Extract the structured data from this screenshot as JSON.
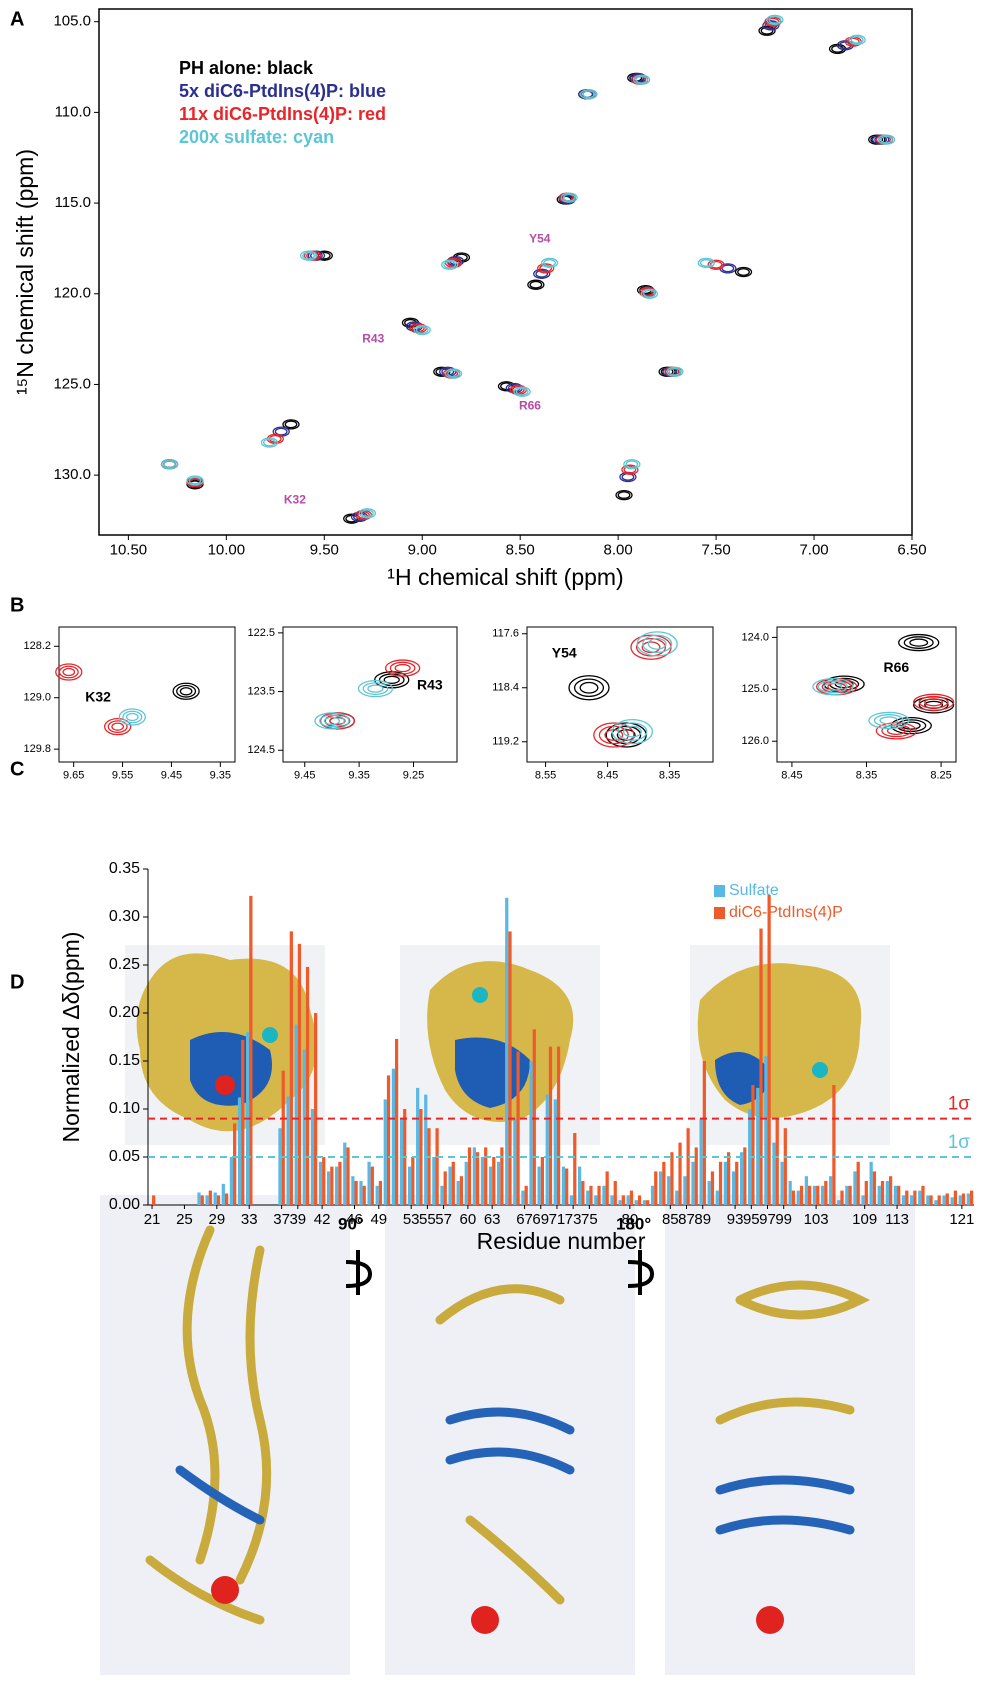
{
  "panel_labels": [
    "A",
    "B",
    "C",
    "D"
  ],
  "chart_data": [
    {
      "type": "scatter",
      "xlabel": "¹H chemical shift (ppm)",
      "ylabel": "¹⁵N chemical shift (ppm)",
      "xlim": [
        10.65,
        6.5
      ],
      "ylim": [
        133.3,
        104.3
      ],
      "xticks": [
        {
          "value": 10.5,
          "label": "10.50"
        },
        {
          "value": 10,
          "label": "10.00"
        },
        {
          "value": 9.5,
          "label": "9.50"
        },
        {
          "value": 9,
          "label": "9.00"
        },
        {
          "value": 8.5,
          "label": "8.50"
        },
        {
          "value": 8,
          "label": "8.00"
        },
        {
          "value": 7.5,
          "label": "7.50"
        },
        {
          "value": 7,
          "label": "7.00"
        },
        {
          "value": 6.5,
          "label": "6.50"
        }
      ],
      "yticks": [
        {
          "value": 105,
          "label": "105.0"
        },
        {
          "value": 110,
          "label": "110.0"
        },
        {
          "value": 115,
          "label": "115.0"
        },
        {
          "value": 120,
          "label": "120.0"
        },
        {
          "value": 125,
          "label": "125.0"
        },
        {
          "value": 130,
          "label": "130.0"
        }
      ],
      "legend": "upper left",
      "annotation_color": "#b84aa8",
      "series": [
        {
          "name": "PH alone: black",
          "color": "#000000",
          "x": [
            7.24,
            6.88,
            7.91,
            8.16,
            6.68,
            8.27,
            8.8,
            9.5,
            7.36,
            8.42,
            7.86,
            9.06,
            8.9,
            7.75,
            8.57,
            9.67,
            10.29,
            7.97,
            9.36,
            10.16
          ],
          "values": [
            105.5,
            106.5,
            108.1,
            109.0,
            111.5,
            114.8,
            118.0,
            117.9,
            118.8,
            119.5,
            119.8,
            121.6,
            124.3,
            124.3,
            125.1,
            127.2,
            129.4,
            131.1,
            132.4,
            130.5
          ]
        },
        {
          "name": "5x diC6-PtdIns(4)P: blue",
          "color": "#2b2f8f",
          "x": [
            7.22,
            6.84,
            7.9,
            8.16,
            6.66,
            8.26,
            8.83,
            9.54,
            7.44,
            8.39,
            7.85,
            9.04,
            8.87,
            7.73,
            8.53,
            9.72,
            10.29,
            7.95,
            9.32,
            10.16
          ],
          "values": [
            105.2,
            106.3,
            108.1,
            109.0,
            111.5,
            114.8,
            118.2,
            117.9,
            118.6,
            118.9,
            119.9,
            121.8,
            124.3,
            124.3,
            125.2,
            127.6,
            129.4,
            130.1,
            132.3,
            130.4
          ]
        },
        {
          "name": "11x diC6-PtdIns(4)P: red",
          "color": "#e8262a",
          "x": [
            7.21,
            6.8,
            7.89,
            8.15,
            6.64,
            8.26,
            8.84,
            9.56,
            7.5,
            8.37,
            7.85,
            9.02,
            8.85,
            7.72,
            8.51,
            9.75,
            10.29,
            7.94,
            9.3,
            10.16
          ],
          "values": [
            105.0,
            106.1,
            108.2,
            109.0,
            111.5,
            114.7,
            118.3,
            117.9,
            118.4,
            118.6,
            119.9,
            121.9,
            124.4,
            124.3,
            125.3,
            128.0,
            129.4,
            129.7,
            132.2,
            130.4
          ]
        },
        {
          "name": "200x sulfate: cyan",
          "color": "#5cc6d6",
          "x": [
            7.2,
            6.78,
            7.88,
            8.15,
            6.63,
            8.25,
            8.86,
            9.58,
            7.55,
            8.35,
            7.84,
            9.0,
            8.84,
            7.71,
            8.49,
            9.78,
            10.29,
            7.93,
            9.28,
            10.16
          ],
          "values": [
            104.9,
            106.0,
            108.2,
            109.0,
            111.5,
            114.7,
            118.4,
            117.9,
            118.3,
            118.3,
            120.0,
            122.0,
            124.4,
            124.3,
            125.4,
            128.2,
            129.4,
            129.4,
            132.1,
            130.3
          ]
        }
      ],
      "annotations": [
        {
          "text": "K32",
          "x": 9.65,
          "y": 131.4
        },
        {
          "text": "R43",
          "x": 9.25,
          "y": 122.5
        },
        {
          "text": "Y54",
          "x": 8.4,
          "y": 117.0
        },
        {
          "text": "R66",
          "x": 8.45,
          "y": 126.2
        }
      ]
    },
    {
      "type": "scatter",
      "xlim": [
        9.68,
        9.32
      ],
      "ylim": [
        130.0,
        127.9
      ],
      "xticks": [
        9.65,
        9.55,
        9.45,
        9.35
      ],
      "yticks": [
        128.2,
        {
          "value": 129,
          "label": "129.0"
        },
        129.8
      ],
      "series": [
        {
          "color": "#000000",
          "x": [
            9.42
          ],
          "values": [
            128.9
          ]
        },
        {
          "color": "#e8262a",
          "x": [
            9.66,
            9.56
          ],
          "values": [
            128.6,
            129.45
          ]
        },
        {
          "color": "#5cc6d6",
          "x": [
            9.53
          ],
          "values": [
            129.3
          ]
        }
      ],
      "annotations": [
        {
          "text": "K32",
          "x": 9.6,
          "y": 129.0
        }
      ]
    },
    {
      "type": "scatter",
      "xlim": [
        9.49,
        9.17
      ],
      "ylim": [
        124.7,
        122.4
      ],
      "xticks": [
        9.45,
        9.35,
        9.25
      ],
      "yticks": [
        122.5,
        123.5,
        124.5
      ],
      "series": [
        {
          "color": "#000000",
          "x": [
            9.29,
            9.39
          ],
          "values": [
            123.3,
            124.0
          ]
        },
        {
          "color": "#e8262a",
          "x": [
            9.27,
            9.39
          ],
          "values": [
            123.1,
            124.0
          ]
        },
        {
          "color": "#5cc6d6",
          "x": [
            9.32,
            9.4
          ],
          "values": [
            123.45,
            124.0
          ]
        }
      ],
      "annotations": [
        {
          "text": "R43",
          "x": 9.22,
          "y": 123.4
        }
      ]
    },
    {
      "type": "scatter",
      "xlim": [
        8.58,
        8.28
      ],
      "ylim": [
        119.5,
        117.5
      ],
      "xticks": [
        8.55,
        8.45,
        8.35
      ],
      "yticks": [
        117.6,
        118.4,
        119.2
      ],
      "series": [
        {
          "color": "#000000",
          "x": [
            8.48,
            8.42
          ],
          "values": [
            118.4,
            119.1
          ]
        },
        {
          "color": "#e8262a",
          "x": [
            8.38,
            8.44
          ],
          "values": [
            117.8,
            119.1
          ]
        },
        {
          "color": "#5cc6d6",
          "x": [
            8.37,
            8.41
          ],
          "values": [
            117.75,
            119.05
          ]
        }
      ],
      "annotations": [
        {
          "text": "Y54",
          "x": 8.52,
          "y": 117.9
        }
      ]
    },
    {
      "type": "scatter",
      "xlim": [
        8.47,
        8.23
      ],
      "ylim": [
        126.4,
        123.8
      ],
      "xticks": [
        8.45,
        8.35,
        8.25
      ],
      "yticks": [
        {
          "value": 124,
          "label": "124.0"
        },
        {
          "value": 125,
          "label": "125.0"
        },
        {
          "value": 126,
          "label": "126.0"
        }
      ],
      "series": [
        {
          "color": "#000000",
          "x": [
            8.28,
            8.38,
            8.29,
            8.26
          ],
          "values": [
            124.1,
            124.9,
            125.7,
            125.3
          ]
        },
        {
          "color": "#e8262a",
          "x": [
            8.39,
            8.31,
            8.26
          ],
          "values": [
            124.95,
            125.8,
            125.25
          ]
        },
        {
          "color": "#5cc6d6",
          "x": [
            8.395,
            8.32
          ],
          "values": [
            124.95,
            125.6
          ]
        }
      ],
      "annotations": [
        {
          "text": "R66",
          "x": 8.31,
          "y": 124.6
        }
      ]
    },
    {
      "type": "bar",
      "xlabel": "Residue number",
      "ylabel": "Normalized Δδ(ppm)",
      "ylim": [
        0,
        0.35
      ],
      "yticks": [
        {
          "value": 0,
          "label": "0.00"
        },
        {
          "value": 0.05,
          "label": "0.05"
        },
        {
          "value": 0.1,
          "label": "0.10"
        },
        {
          "value": 0.15,
          "label": "0.15"
        },
        {
          "value": 0.2,
          "label": "0.20"
        },
        {
          "value": 0.25,
          "label": "0.25"
        },
        {
          "value": 0.3,
          "label": "0.30"
        },
        {
          "value": 0.35,
          "label": "0.35"
        }
      ],
      "legend": "upper right",
      "categories": [
        "21",
        null,
        null,
        null,
        "25",
        null,
        null,
        null,
        "29",
        null,
        null,
        null,
        "33",
        null,
        null,
        null,
        "37",
        null,
        "39",
        null,
        null,
        "42",
        null,
        null,
        null,
        "46",
        null,
        null,
        "49",
        null,
        null,
        null,
        "53",
        null,
        "55",
        null,
        "57",
        null,
        null,
        "60",
        null,
        null,
        "63",
        null,
        null,
        null,
        "67",
        null,
        "69",
        null,
        "71",
        null,
        "73",
        null,
        "75",
        null,
        null,
        null,
        null,
        "80",
        null,
        null,
        null,
        null,
        "85",
        null,
        "87",
        null,
        "89",
        null,
        null,
        null,
        "93",
        null,
        "95",
        null,
        "97",
        null,
        "99",
        null,
        null,
        null,
        "103",
        null,
        null,
        null,
        null,
        null,
        "109",
        null,
        null,
        null,
        "113",
        null,
        null,
        null,
        null,
        null,
        null,
        null,
        "121",
        null
      ],
      "series": [
        {
          "name": "Sulfate",
          "color": "#5ab9e3",
          "values": [
            0,
            0,
            0,
            0,
            0,
            0,
            0.013,
            0.01,
            0.013,
            0.022,
            0.05,
            0.112,
            0.18,
            0,
            0,
            0,
            0.08,
            0.113,
            0.188,
            0.162,
            0.1,
            0.045,
            0.035,
            0.04,
            0.065,
            0.03,
            0.025,
            0.045,
            0.02,
            0.11,
            0.142,
            0.09,
            0.04,
            0.122,
            0.115,
            0.05,
            0.02,
            0.04,
            0.025,
            0.045,
            0.06,
            0.05,
            0.04,
            0.045,
            0.32,
            0.09,
            0.015,
            0.15,
            0.04,
            0.115,
            0.11,
            0.04,
            0.01,
            0.04,
            0.015,
            0.01,
            0.02,
            0.01,
            0.005,
            0.01,
            0.005,
            0.005,
            0.02,
            0.035,
            0.03,
            0.015,
            0.03,
            0.045,
            0.09,
            0.025,
            0.015,
            0.045,
            0.035,
            0.055,
            0.1,
            0.122,
            0.155,
            0.065,
            0.045,
            0.025,
            0.015,
            0.03,
            0.02,
            0.02,
            0.03,
            0.005,
            0.02,
            0.035,
            0.01,
            0.045,
            0.02,
            0.025,
            0.02,
            0.01,
            0.01,
            0.015,
            0.01,
            0.005,
            0.01,
            0.008,
            0.01,
            0.012
          ]
        },
        {
          "name": "diC6-PtdIns(4)P",
          "color": "#ef5a2a",
          "values": [
            0.01,
            0,
            0,
            0,
            0,
            0,
            0.01,
            0.015,
            0.01,
            0.012,
            0.085,
            0.172,
            0.322,
            0,
            0,
            0,
            0.14,
            0.285,
            0.272,
            0.248,
            0.2,
            0.05,
            0.04,
            0.045,
            0.06,
            0.025,
            0.02,
            0.04,
            0.025,
            0.135,
            0.173,
            0.1,
            0.05,
            0.1,
            0.08,
            0.08,
            0.035,
            0.045,
            0.03,
            0.06,
            0.055,
            0.06,
            0.05,
            0.06,
            0.285,
            0.16,
            0.02,
            0.183,
            0.05,
            0.165,
            0.165,
            0.038,
            0.075,
            0.025,
            0.02,
            0.02,
            0.035,
            0.025,
            0.01,
            0.015,
            0.01,
            0.005,
            0.035,
            0.045,
            0.055,
            0.065,
            0.08,
            0.06,
            0.15,
            0.035,
            0.045,
            0.055,
            0.045,
            0.06,
            0.125,
            0.288,
            0.323,
            0.09,
            0.08,
            0.015,
            0.02,
            0.02,
            0.02,
            0.025,
            0.125,
            0.015,
            0.02,
            0.045,
            0.025,
            0.035,
            0.025,
            0.03,
            0.02,
            0.015,
            0.015,
            0.02,
            0.01,
            0.01,
            0.012,
            0.015,
            0.012,
            0.015
          ]
        }
      ],
      "hlines": [
        {
          "value": 0.09,
          "label": "1σ",
          "color": "#e8262a"
        },
        {
          "value": 0.05,
          "label": "1σ",
          "color": "#5cc6d6"
        }
      ]
    }
  ],
  "panel_d": {
    "rotations": [
      "90°",
      "180°"
    ]
  }
}
